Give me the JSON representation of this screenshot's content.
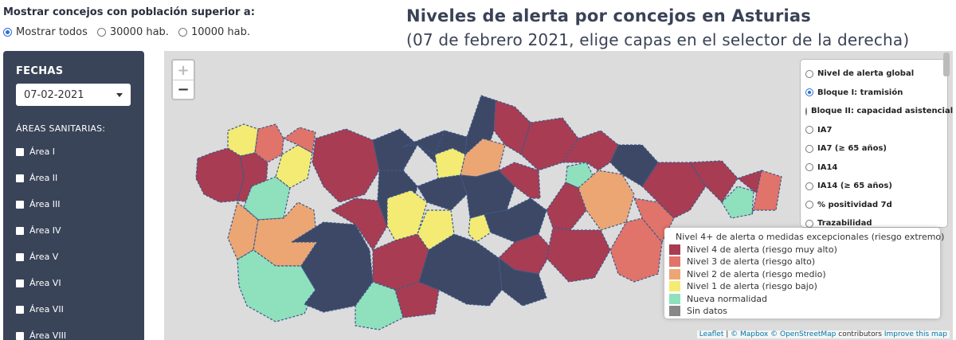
{
  "filter": {
    "title": "Mostrar concejos con población superior a:",
    "options": [
      {
        "label": "Mostrar todos",
        "selected": true
      },
      {
        "label": "30000 hab.",
        "selected": false
      },
      {
        "label": "10000 hab.",
        "selected": false
      }
    ]
  },
  "heading": {
    "title": "Niveles de alerta por concejos en Asturias",
    "subtitle": "(07 de febrero 2021, elige capas en el selector de la derecha)"
  },
  "sidebar": {
    "dates_title": "FECHAS",
    "date_value": "07-02-2021",
    "areas_title": "ÁREAS SANITARIAS:",
    "areas": [
      "Área I",
      "Área II",
      "Área III",
      "Área IV",
      "Área V",
      "Área VI",
      "Área VII",
      "Área VIII"
    ]
  },
  "map": {
    "zoom_in": "+",
    "zoom_out": "−",
    "layers": [
      {
        "label": "Nivel de alerta global",
        "selected": false
      },
      {
        "label": "Bloque I: tramisión",
        "selected": true
      },
      {
        "label": "Bloque II: capacidad asistencial",
        "selected": false
      },
      {
        "label": "IA7",
        "selected": false
      },
      {
        "label": "IA7 (≥ 65 años)",
        "selected": false
      },
      {
        "label": "IA14",
        "selected": false
      },
      {
        "label": "IA14 (≥ 65 años)",
        "selected": false
      },
      {
        "label": "% positividad 7d",
        "selected": false
      },
      {
        "label": "Trazabilidad",
        "selected": false
      }
    ],
    "legend": [
      {
        "label": "Nivel 4+ de alerta o medidas excepcionales (riesgo extremo)",
        "color": "#0f1a3d"
      },
      {
        "label": "Nivel 4 de alerta (riesgo muy alto)",
        "color": "#a83c52"
      },
      {
        "label": "Nivel 3 de alerta (riesgo alto)",
        "color": "#e0736a"
      },
      {
        "label": "Nivel 2 de alerta (riesgo medio)",
        "color": "#eba674"
      },
      {
        "label": "Nivel 1 de alerta (riesgo bajo)",
        "color": "#f3eb73"
      },
      {
        "label": "Nueva normalidad",
        "color": "#8fe0bd"
      },
      {
        "label": "Sin datos",
        "color": "#888888"
      }
    ],
    "attribution": {
      "leaflet": "Leaflet",
      "mapbox": "© Mapbox",
      "osm": "© OpenStreetMap",
      "contributors": " contributors ",
      "improve": "Improve this map"
    }
  }
}
